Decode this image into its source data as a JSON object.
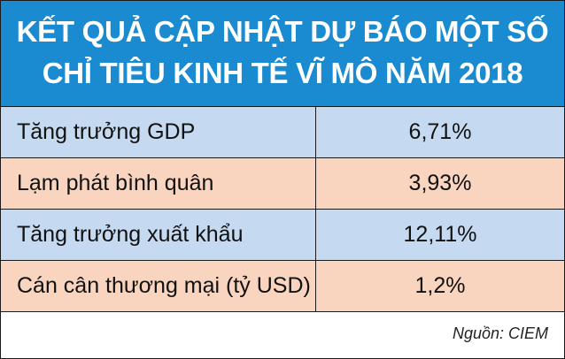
{
  "title": {
    "line1": "KẾT QUẢ CẬP NHẬT DỰ BÁO MỘT SỐ",
    "line2": "CHỈ TIÊU KINH TẾ VĨ MÔ NĂM 2018"
  },
  "colors": {
    "header_bg": "#1a8bd0",
    "row_blue": "#c5daf1",
    "row_peach": "#f9d5bf"
  },
  "table": {
    "rows": [
      {
        "label": "Tăng trưởng GDP",
        "value": "6,71%"
      },
      {
        "label": "Lạm phát bình quân",
        "value": "3,93%"
      },
      {
        "label": "Tăng trưởng xuất khẩu",
        "value": "12,11%"
      },
      {
        "label": "Cán cân thương mại (tỷ USD)",
        "value": "1,2%"
      }
    ]
  },
  "source": "Nguồn: CIEM"
}
